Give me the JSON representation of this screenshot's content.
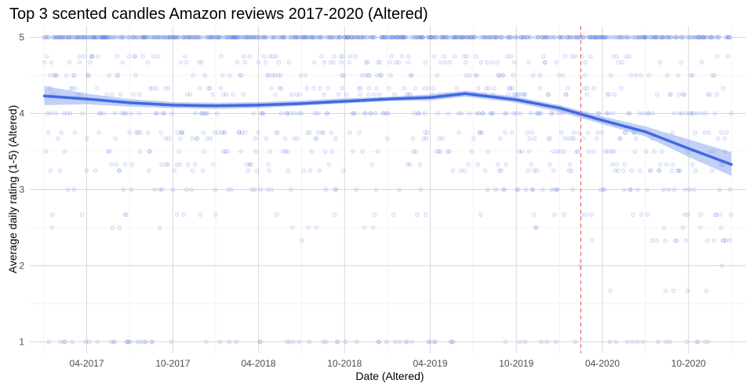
{
  "chart_data": {
    "type": "scatter",
    "title": "Top 3 scented candles Amazon reviews 2017-2020 (Altered)",
    "xlabel": "Date (Altered)",
    "ylabel": "Average daily rating (1-5) (Altered)",
    "x_ticks": [
      "04-2017",
      "10-2017",
      "04-2018",
      "10-2018",
      "04-2019",
      "10-2019",
      "04-2020",
      "10-2020"
    ],
    "y_ticks": [
      "1",
      "2",
      "3",
      "4",
      "5"
    ],
    "xlim": [
      "2016-12-01",
      "2021-01-31"
    ],
    "ylim": [
      0.85,
      5.15
    ],
    "grid": true,
    "point_color": "#4169e1",
    "smooth_color": "#4169e1",
    "ribbon_color": "#8fa8ef",
    "vline": {
      "x": "2020-02-15",
      "color": "#e0534f",
      "style": "dashed"
    },
    "smooth": {
      "x": [
        "2017-01-01",
        "2017-04-01",
        "2017-07-01",
        "2017-10-01",
        "2018-01-01",
        "2018-04-01",
        "2018-07-01",
        "2018-10-01",
        "2019-01-01",
        "2019-04-01",
        "2019-06-15",
        "2019-10-01",
        "2020-01-01",
        "2020-04-01",
        "2020-07-01",
        "2020-10-01",
        "2020-12-31"
      ],
      "y": [
        4.23,
        4.19,
        4.14,
        4.11,
        4.1,
        4.11,
        4.13,
        4.16,
        4.19,
        4.21,
        4.26,
        4.18,
        4.07,
        3.91,
        3.76,
        3.54,
        3.33
      ],
      "lower": [
        4.11,
        4.12,
        4.09,
        4.07,
        4.06,
        4.07,
        4.1,
        4.13,
        4.16,
        4.17,
        4.22,
        4.14,
        4.02,
        3.86,
        3.7,
        3.43,
        3.18
      ],
      "upper": [
        4.36,
        4.26,
        4.19,
        4.15,
        4.14,
        4.15,
        4.17,
        4.2,
        4.22,
        4.25,
        4.3,
        4.22,
        4.11,
        3.96,
        3.83,
        3.66,
        3.49
      ]
    },
    "scatter_levels": [
      1,
      1.33,
      1.5,
      1.67,
      2,
      2.33,
      2.5,
      2.67,
      3,
      3.25,
      3.33,
      3.5,
      3.67,
      3.75,
      4,
      4.25,
      4.33,
      4.5,
      4.67,
      4.75,
      5
    ],
    "scatter_note": "one point per day, 2017-01-01 to 2020-12-31; ratings are mostly between 3.5 and 5 before 2020 and drift lower through 2020"
  }
}
